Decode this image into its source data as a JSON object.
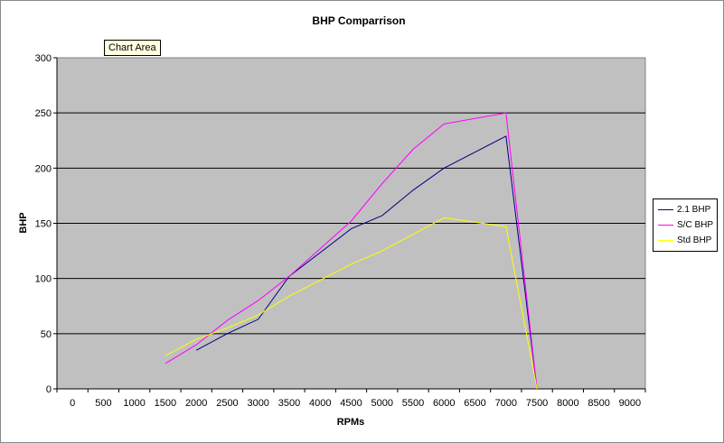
{
  "tooltip": {
    "label": "Chart Area"
  },
  "chart_data": {
    "type": "line",
    "title": "BHP Comparrison",
    "xlabel": "RPMs",
    "ylabel": "BHP",
    "ylim": [
      0,
      300
    ],
    "yticks": [
      0,
      50,
      100,
      150,
      200,
      250,
      300
    ],
    "categories": [
      "0",
      "500",
      "1000",
      "1500",
      "2000",
      "2500",
      "3000",
      "3500",
      "4000",
      "4500",
      "5000",
      "5500",
      "6000",
      "6500",
      "7000",
      "7500",
      "8000",
      "8500",
      "9000"
    ],
    "grid": true,
    "legend_position": "right",
    "series": [
      {
        "name": "2.1 BHP",
        "color": "#000080",
        "x": [
          2000,
          2500,
          3000,
          3500,
          4500,
          5000,
          5500,
          6000,
          7000,
          7500
        ],
        "y": [
          35,
          50,
          63,
          102,
          145,
          157,
          180,
          200,
          229,
          0
        ]
      },
      {
        "name": "S/C BHP",
        "color": "#ff00ff",
        "x": [
          1500,
          2000,
          2500,
          3000,
          3500,
          4500,
          5000,
          5500,
          6000,
          7000,
          7500
        ],
        "y": [
          23,
          40,
          62,
          80,
          102,
          152,
          186,
          217,
          240,
          250,
          0
        ]
      },
      {
        "name": "Std BHP",
        "color": "#ffff00",
        "x": [
          1500,
          2000,
          2500,
          3000,
          3500,
          4500,
          5000,
          5500,
          6000,
          7000,
          7500
        ],
        "y": [
          30,
          45,
          55,
          67,
          84,
          113,
          125,
          140,
          155,
          147,
          0
        ]
      }
    ]
  }
}
